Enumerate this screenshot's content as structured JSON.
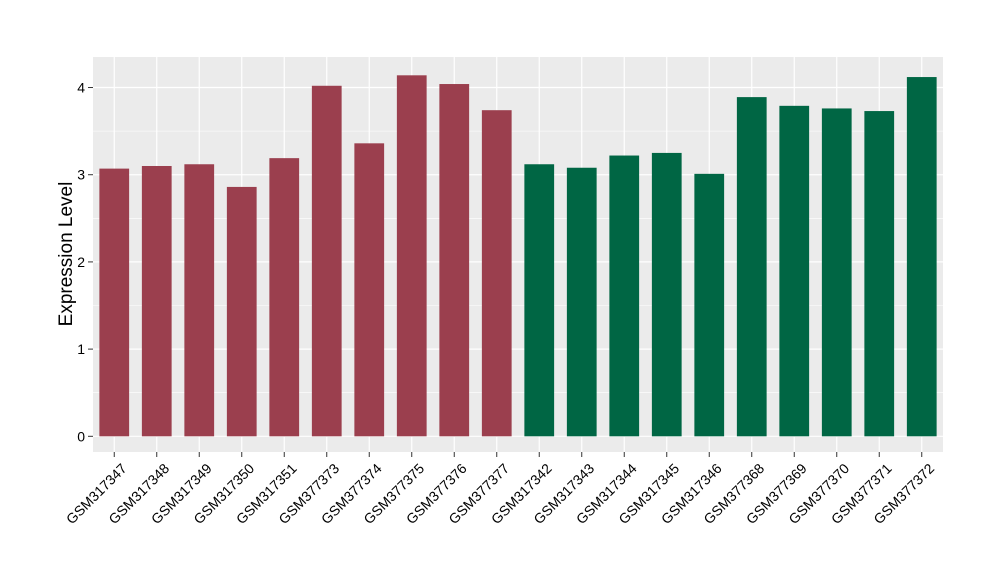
{
  "chart_data": {
    "type": "bar",
    "title": "",
    "xlabel": "",
    "ylabel": "Expression Level",
    "ylim": [
      -0.18,
      4.35
    ],
    "yticks": [
      0,
      1,
      2,
      3,
      4
    ],
    "grid": true,
    "colors": {
      "group1": "#9b3f4e",
      "group2": "#006644",
      "panel": "#ebebeb",
      "gridline": "#ffffff"
    },
    "categories": [
      "GSM317347",
      "GSM317348",
      "GSM317349",
      "GSM317350",
      "GSM317351",
      "GSM377373",
      "GSM377374",
      "GSM377375",
      "GSM377376",
      "GSM377377",
      "GSM317342",
      "GSM317343",
      "GSM317344",
      "GSM317345",
      "GSM317346",
      "GSM377368",
      "GSM377369",
      "GSM377370",
      "GSM377371",
      "GSM377372"
    ],
    "values": [
      3.07,
      3.1,
      3.12,
      2.86,
      3.19,
      4.02,
      3.36,
      4.14,
      4.04,
      3.74,
      3.12,
      3.08,
      3.22,
      3.25,
      3.01,
      3.89,
      3.79,
      3.76,
      3.73,
      4.12
    ],
    "groups": [
      1,
      1,
      1,
      1,
      1,
      1,
      1,
      1,
      1,
      1,
      2,
      2,
      2,
      2,
      2,
      2,
      2,
      2,
      2,
      2
    ]
  }
}
